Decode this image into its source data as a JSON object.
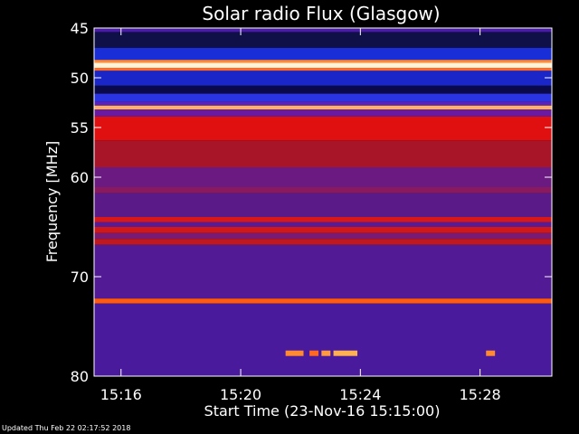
{
  "chart_data": {
    "type": "heatmap",
    "title": "Solar radio Flux (Glasgow)",
    "xlabel": "Start Time (23-Nov-16 15:15:00)",
    "ylabel": "Frequency [MHz]",
    "x_range_minutes": [
      15.1,
      30.4
    ],
    "y_range_mhz": [
      45,
      80
    ],
    "y_reversed": true,
    "x_ticks": [
      {
        "value": 16,
        "label": "15:16"
      },
      {
        "value": 20,
        "label": "15:20"
      },
      {
        "value": 24,
        "label": "15:24"
      },
      {
        "value": 28,
        "label": "15:28"
      }
    ],
    "y_ticks": [
      {
        "value": 45,
        "label": "45"
      },
      {
        "value": 50,
        "label": "50"
      },
      {
        "value": 55,
        "label": "55"
      },
      {
        "value": 60,
        "label": "60"
      },
      {
        "value": 70,
        "label": "70"
      },
      {
        "value": 80,
        "label": "80"
      }
    ],
    "frequency_bands": [
      {
        "start": 45.0,
        "end": 45.4,
        "color": "#4a1aa8"
      },
      {
        "start": 45.4,
        "end": 47.0,
        "color": "#101048"
      },
      {
        "start": 47.0,
        "end": 48.2,
        "color": "#1a2ed8"
      },
      {
        "start": 48.2,
        "end": 48.5,
        "color": "#ff8a3a"
      },
      {
        "start": 48.5,
        "end": 49.0,
        "color": "#fff4d8"
      },
      {
        "start": 49.0,
        "end": 49.3,
        "color": "#ff6a2a"
      },
      {
        "start": 49.3,
        "end": 50.8,
        "color": "#1a26c8"
      },
      {
        "start": 50.8,
        "end": 51.6,
        "color": "#0a0a4a"
      },
      {
        "start": 51.6,
        "end": 52.4,
        "color": "#2a34e0"
      },
      {
        "start": 52.4,
        "end": 52.8,
        "color": "#5a22b8"
      },
      {
        "start": 52.8,
        "end": 53.2,
        "color": "#ffb060"
      },
      {
        "start": 53.2,
        "end": 53.9,
        "color": "#6a1aa0"
      },
      {
        "start": 53.9,
        "end": 56.3,
        "color": "#e01010"
      },
      {
        "start": 56.3,
        "end": 59.0,
        "color": "#a81428"
      },
      {
        "start": 59.0,
        "end": 61.0,
        "color": "#6a1a80"
      },
      {
        "start": 61.0,
        "end": 61.6,
        "color": "#8a1a60"
      },
      {
        "start": 61.6,
        "end": 64.0,
        "color": "#5a1a88"
      },
      {
        "start": 64.0,
        "end": 64.5,
        "color": "#d81818"
      },
      {
        "start": 64.5,
        "end": 65.0,
        "color": "#5a1a90"
      },
      {
        "start": 65.0,
        "end": 65.6,
        "color": "#d01818"
      },
      {
        "start": 65.6,
        "end": 66.2,
        "color": "#7a1a70"
      },
      {
        "start": 66.2,
        "end": 66.8,
        "color": "#c01820"
      },
      {
        "start": 66.8,
        "end": 72.2,
        "color": "#521a94"
      },
      {
        "start": 72.2,
        "end": 72.7,
        "color": "#ff5a10"
      },
      {
        "start": 72.7,
        "end": 80.0,
        "color": "#4a1a9c"
      }
    ],
    "bursts": [
      {
        "t_start": 21.5,
        "t_end": 22.1,
        "freq": 77.7,
        "color": "#ff8a30"
      },
      {
        "t_start": 22.3,
        "t_end": 22.6,
        "freq": 77.7,
        "color": "#ff6a20"
      },
      {
        "t_start": 22.7,
        "t_end": 23.0,
        "freq": 77.7,
        "color": "#ff9a40"
      },
      {
        "t_start": 23.1,
        "t_end": 23.9,
        "freq": 77.7,
        "color": "#ffb050"
      },
      {
        "t_start": 28.2,
        "t_end": 28.5,
        "freq": 77.7,
        "color": "#ff8a30"
      }
    ]
  },
  "footer": "Updated Thu Feb 22 02:17:52 2018"
}
